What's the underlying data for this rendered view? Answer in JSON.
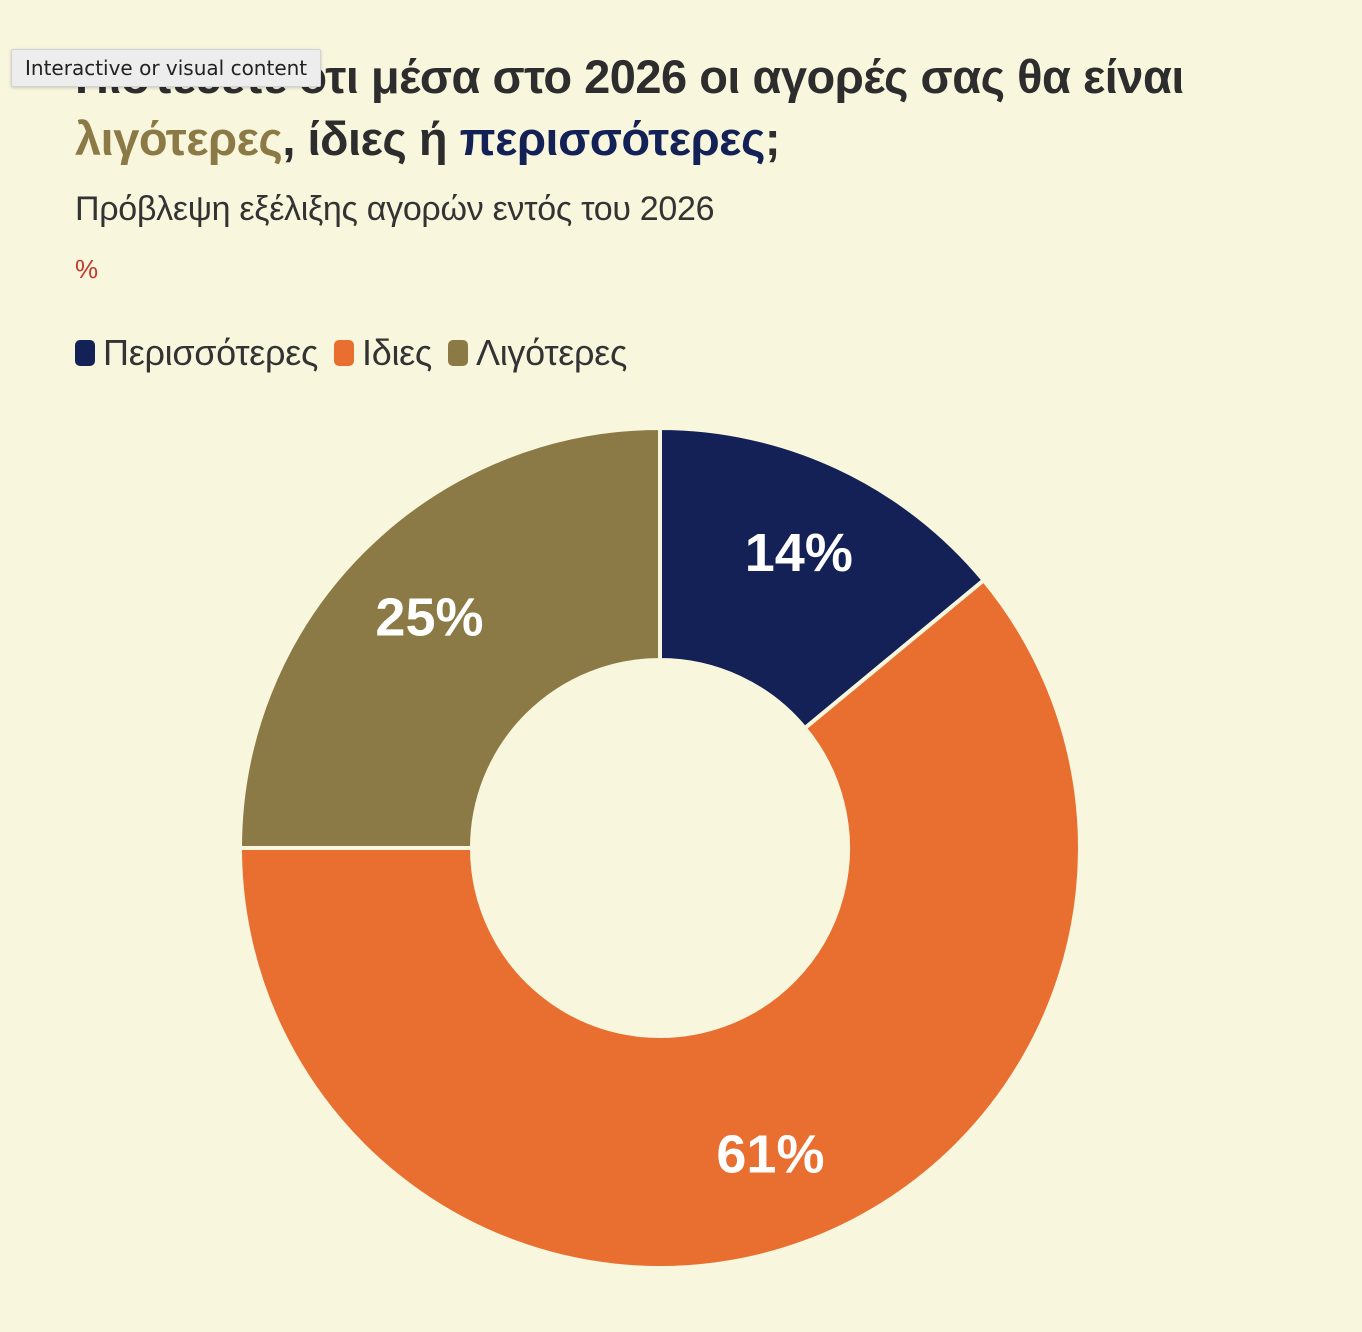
{
  "tooltip": "Interactive or visual content",
  "title": {
    "part1": "Πιστεύετε ότι μέσα στο 2026 οι αγορές σας θα είναι ",
    "less": "λιγότερες",
    "part2": ", ίδιες ή ",
    "more": "περισσότερες",
    "part3": ";"
  },
  "subtitle": "Πρόβλεψη εξέλιξης αγορών εντός του 2026",
  "unit": "%",
  "colors": {
    "background": "#f8f6dd",
    "more": "#132157",
    "same": "#e96f30",
    "less": "#8b7a45"
  },
  "chart_data": {
    "type": "pie",
    "variant": "donut",
    "title": "Πιστεύετε ότι μέσα στο 2026 οι αγορές σας θα είναι λιγότερες, ίδιες ή περισσότερες;",
    "subtitle": "Πρόβλεψη εξέλιξης αγορών εντός του 2026",
    "unit": "%",
    "legend_position": "top-left",
    "categories": [
      "Περισσότερες",
      "Ιδιες",
      "Λιγότερες"
    ],
    "values": [
      14,
      61,
      25
    ],
    "labels": [
      "14%",
      "61%",
      "25%"
    ],
    "colors": [
      "#132157",
      "#e96f30",
      "#8b7a45"
    ]
  }
}
